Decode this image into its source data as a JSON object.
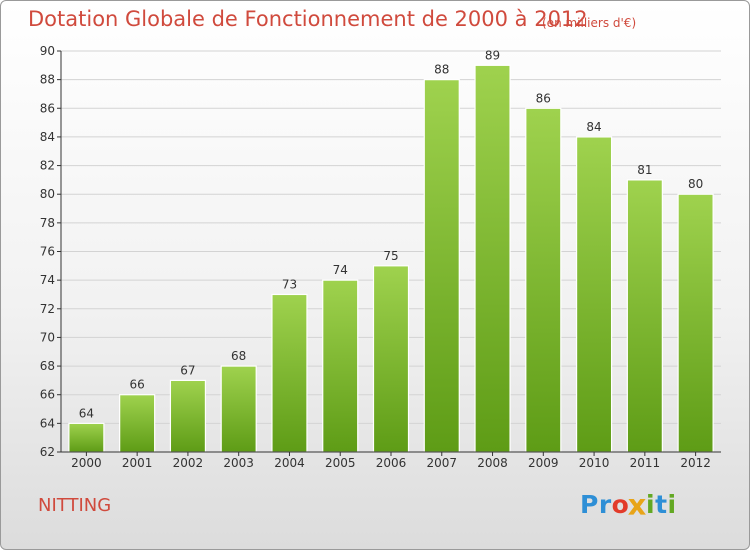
{
  "title": "Dotation Globale de Fonctionnement de 2000 à 2012",
  "subtitle": "(en milliers d'€)",
  "commune": "NITTING",
  "logo": {
    "letters": [
      "P",
      "r",
      "o",
      "x",
      "i",
      "t",
      "i"
    ],
    "colors": [
      "#2e8fd6",
      "#2e8fd6",
      "#e23b2a",
      "#e8a418",
      "#63a823",
      "#2e8fd6",
      "#63a823"
    ]
  },
  "colors": {
    "bar_top": "#9fd24e",
    "bar_bottom": "#5e9c16",
    "text": "#d04a3d",
    "grid": "#d3d3d3",
    "axis": "#333333"
  },
  "chart_data": {
    "type": "bar",
    "title": "Dotation Globale de Fonctionnement de 2000 à 2012",
    "subtitle": "(en milliers d'€)",
    "xlabel": "",
    "ylabel": "",
    "categories": [
      "2000",
      "2001",
      "2002",
      "2003",
      "2004",
      "2005",
      "2006",
      "2007",
      "2008",
      "2009",
      "2010",
      "2011",
      "2012"
    ],
    "values": [
      64,
      66,
      67,
      68,
      73,
      74,
      75,
      88,
      89,
      86,
      84,
      81,
      80
    ],
    "ylim": [
      62,
      90
    ],
    "yticks": [
      62,
      64,
      66,
      68,
      70,
      72,
      74,
      76,
      78,
      80,
      82,
      84,
      86,
      88,
      90
    ],
    "grid": true,
    "data_labels": true
  }
}
